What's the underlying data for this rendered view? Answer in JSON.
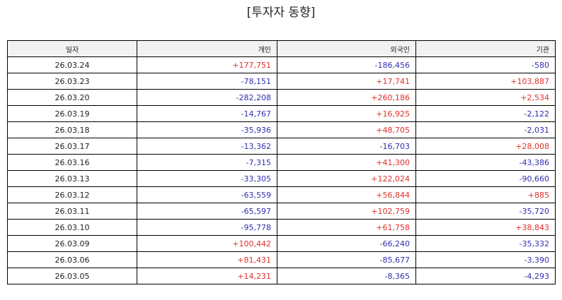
{
  "title": "[투자자 동향]",
  "colors": {
    "positive": "#e0302a",
    "negative": "#2f2fb0",
    "header_bg": "#f2f2f2",
    "border": "#000000"
  },
  "table": {
    "headers": [
      "일자",
      "개인",
      "외국인",
      "기관"
    ],
    "rows": [
      [
        "26.03.24",
        "+177,751",
        "-186,456",
        "-580"
      ],
      [
        "26.03.23",
        "-78,151",
        "+17,741",
        "+103,887"
      ],
      [
        "26.03.20",
        "-282,208",
        "+260,186",
        "+2,534"
      ],
      [
        "26.03.19",
        "-14,767",
        "+16,925",
        "-2,122"
      ],
      [
        "26.03.18",
        "-35,936",
        "+48,705",
        "-2,031"
      ],
      [
        "26.03.17",
        "-13,362",
        "-16,703",
        "+28,008"
      ],
      [
        "26.03.16",
        "-7,315",
        "+41,300",
        "-43,386"
      ],
      [
        "26.03.13",
        "-33,305",
        "+122,024",
        "-90,660"
      ],
      [
        "26.03.12",
        "-63,559",
        "+56,844",
        "+885"
      ],
      [
        "26.03.11",
        "-65,597",
        "+102,759",
        "-35,720"
      ],
      [
        "26.03.10",
        "-95,778",
        "+61,758",
        "+38,843"
      ],
      [
        "26.03.09",
        "+100,442",
        "-66,240",
        "-35,332"
      ],
      [
        "26.03.06",
        "+81,431",
        "-85,677",
        "-3,390"
      ],
      [
        "26.03.05",
        "+14,231",
        "-8,365",
        "-4,293"
      ]
    ]
  }
}
